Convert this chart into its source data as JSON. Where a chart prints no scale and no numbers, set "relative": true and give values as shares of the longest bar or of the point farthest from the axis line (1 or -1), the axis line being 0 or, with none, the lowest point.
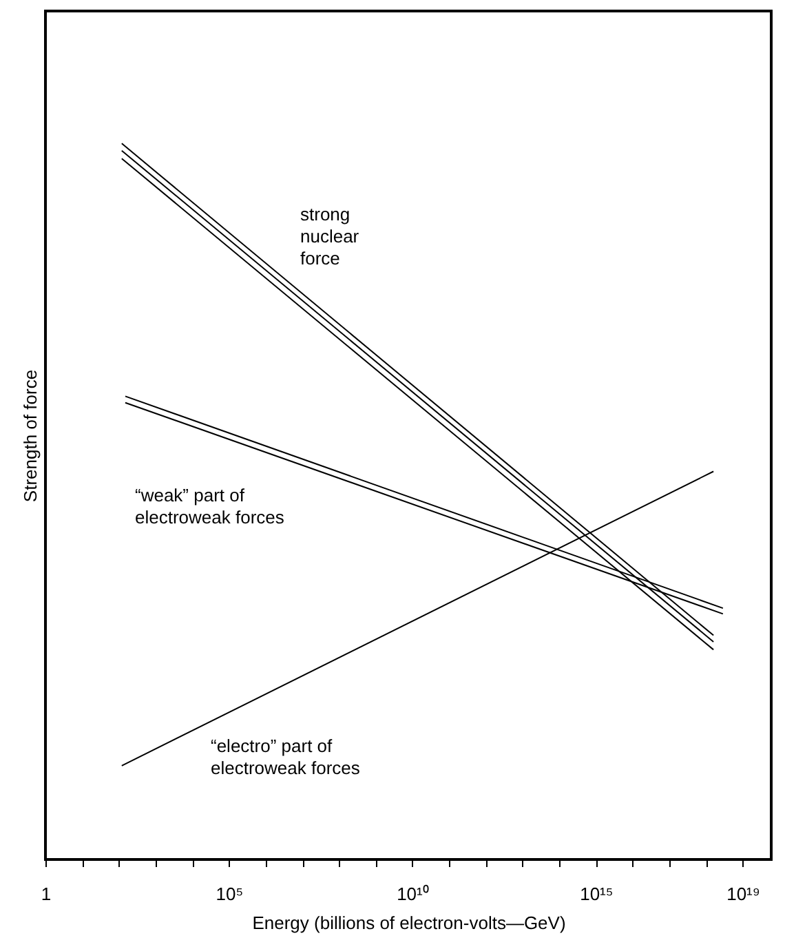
{
  "chart_data": {
    "type": "line",
    "relative": true,
    "log": "x",
    "grid": false,
    "marker": "none",
    "line_style": "solid",
    "xlabel": "Energy (billions of electron-volts—GeV)",
    "ylabel": "Strength of force",
    "xlim": [
      1,
      6e+19
    ],
    "xticks": [
      {
        "value": 1,
        "label": "1"
      },
      {
        "value": 10,
        "label": null
      },
      {
        "value": 100,
        "label": null
      },
      {
        "value": 1000,
        "label": null
      },
      {
        "value": 10000,
        "label": null
      },
      {
        "value": 100000,
        "label": "10⁵"
      },
      {
        "value": 1000000.0,
        "label": null
      },
      {
        "value": 10000000.0,
        "label": null
      },
      {
        "value": 100000000.0,
        "label": null
      },
      {
        "value": 1000000000.0,
        "label": null
      },
      {
        "value": 10000000000.0,
        "label": "10¹⁰"
      },
      {
        "value": 100000000000.0,
        "label": null
      },
      {
        "value": 1000000000000.0,
        "label": null
      },
      {
        "value": 10000000000000.0,
        "label": null
      },
      {
        "value": 100000000000000.0,
        "label": null
      },
      {
        "value": 1000000000000000.0,
        "label": "10¹⁵"
      },
      {
        "value": 1e+16,
        "label": null
      },
      {
        "value": 1e+17,
        "label": null
      },
      {
        "value": 1e+18,
        "label": null
      },
      {
        "value": 1e+19,
        "label": "10¹⁹"
      }
    ],
    "series": [
      {
        "name": "strong\nnuclear\nforce",
        "color": "#000000",
        "x": [
          120,
          1.6e+18
        ],
        "values": [
          1.0,
          0.313
        ]
      },
      {
        "color": "#000000",
        "x": [
          120,
          1.6e+18
        ],
        "values": [
          0.99,
          0.304
        ]
      },
      {
        "color": "#000000",
        "x": [
          120,
          1.6e+18
        ],
        "values": [
          0.979,
          0.293
        ]
      },
      {
        "name": "“weak” part of\nelectroweak forces",
        "color": "#000000",
        "x": [
          150,
          2.9e+18
        ],
        "values": [
          0.647,
          0.351
        ]
      },
      {
        "color": "#000000",
        "x": [
          150,
          2.9e+18
        ],
        "values": [
          0.638,
          0.343
        ]
      },
      {
        "name": "“electro” part of\nelectroweak forces",
        "color": "#000000",
        "x": [
          120,
          1.6e+18
        ],
        "values": [
          0.131,
          0.542
        ]
      }
    ]
  }
}
